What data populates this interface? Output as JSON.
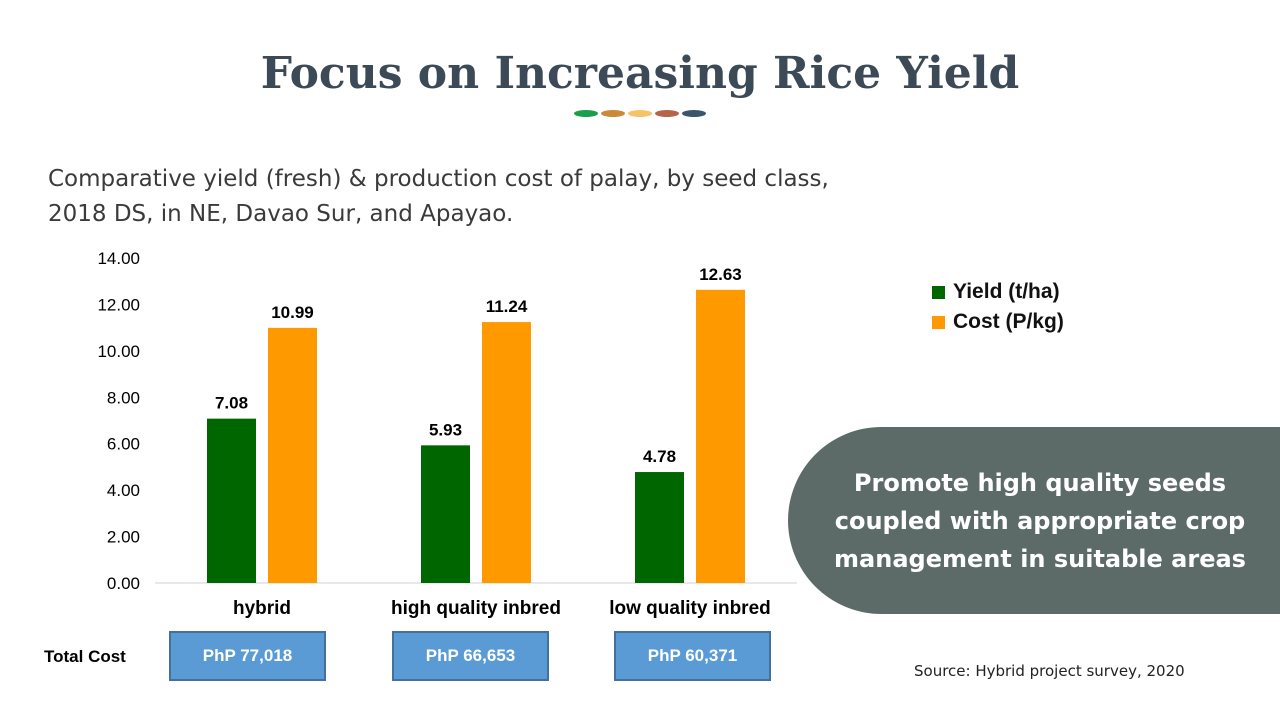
{
  "header": {
    "title": "Focus on Increasing Rice Yield",
    "decor_dot_colors": [
      "#1a9e4a",
      "#c98a3a",
      "#f5c46a",
      "#b5654a",
      "#3c556b"
    ]
  },
  "subtitle": {
    "line1": "Comparative yield (fresh) & production cost of palay, by seed class,",
    "line2": "2018 DS, in NE, Davao Sur, and Apayao."
  },
  "chart_data": {
    "type": "bar",
    "categories": [
      "hybrid",
      "high quality inbred",
      "low quality inbred"
    ],
    "series": [
      {
        "name": "Yield (t/ha)",
        "values": [
          7.08,
          5.93,
          4.78
        ],
        "color": "#006600"
      },
      {
        "name": "Cost (P/kg)",
        "values": [
          10.99,
          11.24,
          12.63
        ],
        "color": "#ff9900"
      }
    ],
    "value_labels": [
      [
        "7.08",
        "5.93",
        "4.78"
      ],
      [
        "10.99",
        "11.24",
        "12.63"
      ]
    ],
    "ylim": [
      0,
      14
    ],
    "yticks": [
      "0.00",
      "2.00",
      "4.00",
      "6.00",
      "8.00",
      "10.00",
      "12.00",
      "14.00"
    ],
    "xlabel": "",
    "ylabel": "",
    "grid": false,
    "legend_position": "right"
  },
  "callout": {
    "line1": "Promote high quality seeds",
    "line2": "coupled with appropriate crop",
    "line3": "management in suitable areas"
  },
  "total_cost": {
    "label": "Total Cost",
    "values": [
      "PhP 77,018",
      "PhP 66,653",
      "PhP 60,371"
    ]
  },
  "source": "Source: Hybrid project survey, 2020"
}
